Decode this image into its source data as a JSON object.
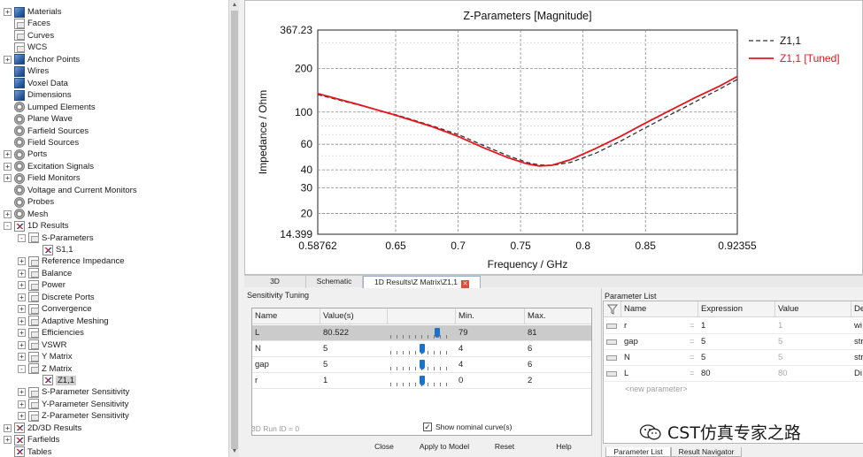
{
  "tree": {
    "items": [
      {
        "label": "Materials",
        "icon": "cube-icon",
        "level": 0,
        "expander": "+"
      },
      {
        "label": "Faces",
        "icon": "folder-icon",
        "level": 0,
        "expander": ""
      },
      {
        "label": "Curves",
        "icon": "folder-icon",
        "level": 0,
        "expander": ""
      },
      {
        "label": "WCS",
        "icon": "folder-icon",
        "level": 0,
        "expander": ""
      },
      {
        "label": "Anchor Points",
        "icon": "cube-icon",
        "level": 0,
        "expander": "+"
      },
      {
        "label": "Wires",
        "icon": "cube-icon",
        "level": 0,
        "expander": ""
      },
      {
        "label": "Voxel Data",
        "icon": "cube-icon",
        "level": 0,
        "expander": ""
      },
      {
        "label": "Dimensions",
        "icon": "cube-icon",
        "level": 0,
        "expander": ""
      },
      {
        "label": "Lumped Elements",
        "icon": "gear-icon",
        "level": 0,
        "expander": ""
      },
      {
        "label": "Plane Wave",
        "icon": "gear-icon",
        "level": 0,
        "expander": ""
      },
      {
        "label": "Farfield Sources",
        "icon": "gear-icon",
        "level": 0,
        "expander": ""
      },
      {
        "label": "Field Sources",
        "icon": "gear-icon",
        "level": 0,
        "expander": ""
      },
      {
        "label": "Ports",
        "icon": "gear-icon",
        "level": 0,
        "expander": "+"
      },
      {
        "label": "Excitation Signals",
        "icon": "gear-icon",
        "level": 0,
        "expander": "+"
      },
      {
        "label": "Field Monitors",
        "icon": "gear-icon",
        "level": 0,
        "expander": "+"
      },
      {
        "label": "Voltage and Current Monitors",
        "icon": "gear-icon",
        "level": 0,
        "expander": ""
      },
      {
        "label": "Probes",
        "icon": "gear-icon",
        "level": 0,
        "expander": ""
      },
      {
        "label": "Mesh",
        "icon": "gear-icon",
        "level": 0,
        "expander": "+"
      },
      {
        "label": "1D Results",
        "icon": "result-icon",
        "level": 0,
        "expander": "-"
      },
      {
        "label": "S-Parameters",
        "icon": "folder-icon",
        "level": 1,
        "expander": "-"
      },
      {
        "label": "S1,1",
        "icon": "result-icon",
        "level": 2,
        "expander": ""
      },
      {
        "label": "Reference Impedance",
        "icon": "folder-icon",
        "level": 1,
        "expander": "+"
      },
      {
        "label": "Balance",
        "icon": "folder-icon",
        "level": 1,
        "expander": "+"
      },
      {
        "label": "Power",
        "icon": "folder-icon",
        "level": 1,
        "expander": "+"
      },
      {
        "label": "Discrete Ports",
        "icon": "folder-icon",
        "level": 1,
        "expander": "+"
      },
      {
        "label": "Convergence",
        "icon": "folder-icon",
        "level": 1,
        "expander": "+"
      },
      {
        "label": "Adaptive Meshing",
        "icon": "folder-icon",
        "level": 1,
        "expander": "+"
      },
      {
        "label": "Efficiencies",
        "icon": "folder-icon",
        "level": 1,
        "expander": "+"
      },
      {
        "label": "VSWR",
        "icon": "folder-icon",
        "level": 1,
        "expander": "+"
      },
      {
        "label": "Y Matrix",
        "icon": "folder-icon",
        "level": 1,
        "expander": "+"
      },
      {
        "label": "Z Matrix",
        "icon": "folder-icon",
        "level": 1,
        "expander": "-"
      },
      {
        "label": "Z1,1",
        "icon": "result-icon",
        "level": 2,
        "expander": "",
        "selected": true
      },
      {
        "label": "S-Parameter Sensitivity",
        "icon": "folder-icon",
        "level": 1,
        "expander": "+"
      },
      {
        "label": "Y-Parameter Sensitivity",
        "icon": "folder-icon",
        "level": 1,
        "expander": "+"
      },
      {
        "label": "Z-Parameter Sensitivity",
        "icon": "folder-icon",
        "level": 1,
        "expander": "+"
      },
      {
        "label": "2D/3D Results",
        "icon": "result-icon",
        "level": 0,
        "expander": "+"
      },
      {
        "label": "Farfields",
        "icon": "result-icon",
        "level": 0,
        "expander": "+"
      },
      {
        "label": "Tables",
        "icon": "result-icon",
        "level": 0,
        "expander": ""
      }
    ]
  },
  "chart_data": {
    "type": "line",
    "title": "Z-Parameters [Magnitude]",
    "xlabel": "Frequency / GHz",
    "ylabel": "Impedance / Ohm",
    "xlim": [
      0.58762,
      0.92355
    ],
    "ylim": [
      14.399,
      367.23
    ],
    "yscale": "log",
    "grid": true,
    "legend": "top-right",
    "x_ticks": [
      "0.58762",
      "0.65",
      "0.7",
      "0.75",
      "0.8",
      "0.85",
      "0.92355"
    ],
    "y_ticks": [
      "367.23",
      "200",
      "100",
      "60",
      "40",
      "30",
      "20",
      "14.399"
    ],
    "y_tick_values": [
      367.23,
      200,
      100,
      60,
      40,
      30,
      20,
      14.399
    ],
    "x_tick_values": [
      0.58762,
      0.65,
      0.7,
      0.75,
      0.8,
      0.85,
      0.92355
    ],
    "series": [
      {
        "name": "Z1,1",
        "style": "dashed",
        "color": "#333333",
        "x": [
          0.58762,
          0.62,
          0.65,
          0.68,
          0.7,
          0.72,
          0.74,
          0.755,
          0.765,
          0.775,
          0.79,
          0.81,
          0.83,
          0.85,
          0.87,
          0.89,
          0.91,
          0.92355
        ],
        "y": [
          132,
          112,
          96,
          80,
          70,
          59,
          50,
          45,
          43.2,
          43,
          45,
          52,
          63,
          78,
          96,
          118,
          145,
          168
        ]
      },
      {
        "name": "Z1,1 [Tuned]",
        "style": "solid",
        "color": "#e8141b",
        "x": [
          0.58762,
          0.62,
          0.65,
          0.68,
          0.7,
          0.72,
          0.74,
          0.755,
          0.765,
          0.775,
          0.79,
          0.81,
          0.83,
          0.85,
          0.87,
          0.89,
          0.91,
          0.92355
        ],
        "y": [
          134,
          113,
          95,
          79,
          68,
          57,
          48.5,
          44,
          42.5,
          43,
          47,
          56,
          68,
          84,
          103,
          126,
          152,
          176
        ]
      }
    ]
  },
  "tabs": [
    {
      "label": "3D",
      "active": false
    },
    {
      "label": "Schematic",
      "active": false
    },
    {
      "label": "1D Results\\Z Matrix\\Z1,1",
      "active": true
    }
  ],
  "sensitivity": {
    "title": "Sensitivity Tuning",
    "columns": [
      "Name",
      "Value(s)",
      "",
      "Min.",
      "Max."
    ],
    "rows": [
      {
        "name": "L",
        "value": "80.522",
        "min": "79",
        "max": "81",
        "slider": 0.761,
        "selected": true
      },
      {
        "name": "N",
        "value": "5",
        "min": "4",
        "max": "6",
        "slider": 0.5,
        "selected": false
      },
      {
        "name": "gap",
        "value": "5",
        "min": "4",
        "max": "6",
        "slider": 0.5,
        "selected": false
      },
      {
        "name": "r",
        "value": "1",
        "min": "0",
        "max": "2",
        "slider": 0.5,
        "selected": false
      }
    ],
    "run_id": "3D Run ID = 0",
    "show_nominal_label": "Show nominal curve(s)",
    "show_nominal_checked": "✓",
    "buttons": {
      "close": "Close",
      "apply": "Apply to Model",
      "reset": "Reset",
      "help": "Help"
    }
  },
  "parameter_list": {
    "title": "Parameter List",
    "columns": [
      "Name",
      "Expression",
      "Value",
      "De"
    ],
    "rows": [
      {
        "name": "r",
        "eq": "=",
        "expression": "1",
        "value": "1",
        "desc": "wi"
      },
      {
        "name": "gap",
        "eq": "=",
        "expression": "5",
        "value": "5",
        "desc": "str"
      },
      {
        "name": "N",
        "eq": "=",
        "expression": "5",
        "value": "5",
        "desc": "str"
      },
      {
        "name": "L",
        "eq": "=",
        "expression": "80",
        "value": "80",
        "desc": "Di"
      }
    ],
    "new_parameter": "<new parameter>",
    "watermark": "CST仿真专家之路",
    "bottom_tabs": [
      "Parameter List",
      "Result Navigator"
    ]
  }
}
